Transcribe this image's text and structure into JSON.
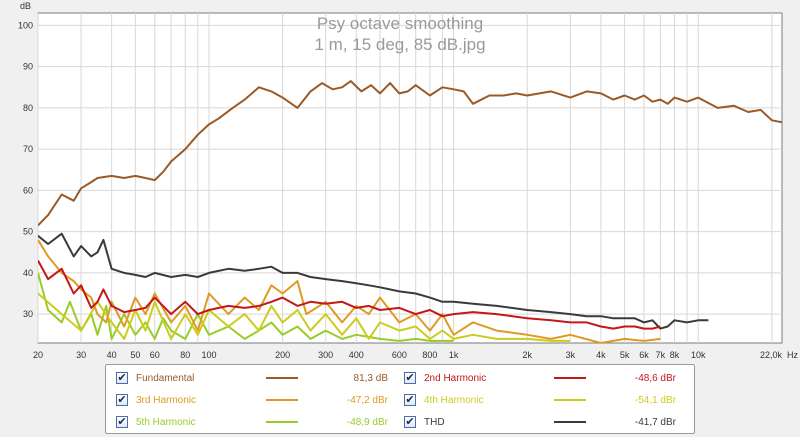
{
  "chart_data": {
    "type": "line",
    "title": "Psy octave smoothing",
    "subtitle": "1 m, 15 deg, 85 dB.jpg",
    "ylabel": "dB",
    "xunit": "Hz",
    "x_scale": "log",
    "xlim": [
      20,
      22000
    ],
    "ylim": [
      23,
      103
    ],
    "y_ticks": [
      "100",
      "90",
      "80",
      "70",
      "60",
      "50",
      "40",
      "30"
    ],
    "x_tick_labels": [
      "20",
      "30",
      "40",
      "50",
      "60",
      "80",
      "100",
      "200",
      "300",
      "400",
      "600",
      "800",
      "1k",
      "2k",
      "3k",
      "4k",
      "5k",
      "6k",
      "7k",
      "8k",
      "10k",
      "22,0k"
    ],
    "grid": true,
    "series": [
      {
        "name": "Fundamental",
        "value_label": "81,3 dB",
        "color": "#9a5a28",
        "x": [
          20,
          22,
          25,
          28,
          30,
          33,
          35,
          40,
          45,
          50,
          55,
          60,
          65,
          70,
          80,
          90,
          100,
          110,
          125,
          140,
          160,
          180,
          200,
          230,
          260,
          290,
          320,
          350,
          380,
          420,
          460,
          500,
          550,
          600,
          650,
          700,
          800,
          900,
          1000,
          1100,
          1200,
          1400,
          1600,
          1800,
          2000,
          2500,
          3000,
          3500,
          4000,
          4500,
          5000,
          5500,
          6000,
          6500,
          7000,
          7500,
          8000,
          9000,
          10000,
          12000,
          14000,
          16000,
          18000,
          20000,
          22000
        ],
        "y": [
          51.5,
          54,
          59,
          57.5,
          60.5,
          62,
          63,
          63.5,
          63,
          63.5,
          63,
          62.5,
          64.5,
          67,
          70,
          73.5,
          76,
          77.5,
          80,
          82,
          85,
          84,
          82.5,
          80,
          84,
          86,
          84.5,
          85,
          86.5,
          84,
          85.5,
          83.5,
          86,
          83.5,
          84,
          85.5,
          83,
          85,
          84.5,
          84,
          81,
          83,
          83,
          83.5,
          83,
          84,
          82.5,
          84,
          83.5,
          82,
          83,
          82,
          83,
          81.5,
          82,
          81,
          82.5,
          81.5,
          82.5,
          80,
          80.5,
          79,
          79.5,
          77,
          76.5
        ]
      },
      {
        "name": "2nd Harmonic",
        "value_label": "-48,6 dBr",
        "color": "#c21818",
        "x": [
          20,
          22,
          25,
          28,
          30,
          33,
          35,
          37,
          40,
          45,
          50,
          55,
          60,
          70,
          80,
          90,
          100,
          120,
          140,
          160,
          180,
          200,
          230,
          260,
          300,
          350,
          400,
          450,
          500,
          600,
          700,
          800,
          900,
          1000,
          1200,
          1500,
          2000,
          2500,
          3000,
          3500,
          4000,
          4500,
          5000,
          5500,
          6000,
          6500,
          7000
        ],
        "y": [
          43,
          38.5,
          41,
          35,
          37,
          31.5,
          33,
          36,
          32,
          30.5,
          31,
          31.5,
          34,
          30,
          33,
          30,
          31,
          32,
          31.5,
          32,
          33,
          34,
          32,
          33,
          32.5,
          33,
          31.5,
          32,
          31,
          31.5,
          30,
          31,
          29.5,
          30,
          30.5,
          30,
          29,
          28.5,
          28,
          28,
          27,
          26.5,
          27,
          27,
          26.5,
          26.5,
          27
        ]
      },
      {
        "name": "3rd Harmonic",
        "value_label": "-47,2 dBr",
        "color": "#e09a22",
        "x": [
          20,
          22,
          25,
          28,
          30,
          33,
          35,
          38,
          40,
          45,
          50,
          55,
          60,
          70,
          80,
          90,
          100,
          120,
          140,
          160,
          180,
          200,
          230,
          250,
          300,
          350,
          400,
          450,
          500,
          600,
          700,
          800,
          900,
          1000,
          1200,
          1500,
          2000,
          2500,
          3000,
          4000,
          5000,
          6000,
          7000
        ],
        "y": [
          48,
          44,
          40,
          38,
          36,
          34,
          30,
          28,
          33,
          27,
          34,
          30,
          35,
          28,
          32,
          26,
          35,
          30,
          34,
          31,
          37,
          35,
          38,
          30,
          33,
          28,
          32,
          30,
          34,
          28,
          30,
          26,
          30,
          25,
          28,
          26,
          25,
          24,
          25,
          23,
          24,
          23.5,
          24
        ]
      },
      {
        "name": "4th Harmonic",
        "value_label": "-54,1 dBr",
        "color": "#cccc1c",
        "x": [
          20,
          25,
          30,
          35,
          40,
          45,
          50,
          55,
          60,
          70,
          80,
          90,
          100,
          120,
          140,
          160,
          180,
          200,
          230,
          260,
          300,
          350,
          400,
          450,
          500,
          600,
          700,
          800,
          900,
          1000,
          1200,
          1500,
          2000,
          2500,
          3000
        ],
        "y": [
          35,
          30,
          26,
          33,
          28,
          24,
          31,
          26,
          33,
          24,
          30,
          25,
          31,
          27,
          30,
          26,
          32,
          28,
          31,
          26,
          30,
          25,
          29,
          24,
          28,
          26,
          27,
          24,
          26,
          24,
          25,
          24,
          24,
          23.5,
          23.5
        ]
      },
      {
        "name": "5th Harmonic",
        "value_label": "-48,9 dBr",
        "color": "#98cc28",
        "x": [
          20,
          22,
          25,
          27,
          30,
          33,
          35,
          38,
          40,
          45,
          50,
          55,
          60,
          65,
          70,
          80,
          90,
          100,
          120,
          140,
          160,
          180,
          200,
          230,
          260,
          300,
          350,
          400,
          500,
          600,
          700,
          800,
          1000
        ],
        "y": [
          40,
          31,
          28,
          33,
          26,
          30,
          25,
          32,
          24,
          30,
          25,
          28,
          24,
          29,
          26,
          24,
          30,
          25,
          27,
          24,
          26,
          28,
          25,
          27,
          24,
          26,
          24,
          25,
          24,
          23.5,
          24,
          23.5,
          23.5
        ]
      },
      {
        "name": "THD",
        "value_label": "-41,7 dBr",
        "color": "#3a3a3a",
        "x": [
          20,
          22,
          25,
          28,
          30,
          33,
          35,
          37,
          40,
          45,
          50,
          55,
          60,
          70,
          80,
          90,
          100,
          120,
          140,
          160,
          180,
          200,
          230,
          260,
          300,
          350,
          400,
          450,
          500,
          600,
          700,
          800,
          900,
          1000,
          1200,
          1500,
          2000,
          2500,
          3000,
          3500,
          4000,
          4500,
          5000,
          5500,
          6000,
          6500,
          7000,
          7500,
          8000,
          9000,
          10000,
          11000
        ],
        "y": [
          49,
          47,
          49.5,
          44,
          46.5,
          44,
          45,
          48,
          41,
          40,
          39.5,
          39,
          40,
          39,
          39.5,
          39,
          40,
          41,
          40.5,
          41,
          41.5,
          40,
          40,
          39,
          38.5,
          38,
          37.5,
          37,
          36.5,
          35.5,
          35,
          34,
          33,
          33,
          32.5,
          32,
          31,
          30.5,
          30,
          29.5,
          29.5,
          29,
          29,
          29,
          28,
          28.5,
          26.5,
          27,
          28.5,
          28,
          28.5,
          28.5
        ]
      }
    ]
  }
}
